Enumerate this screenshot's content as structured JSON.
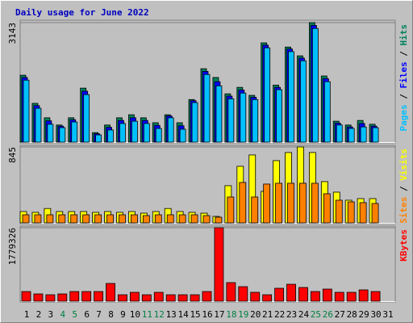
{
  "chart_data": [
    {
      "type": "bar",
      "title": "Daily usage for June 2022",
      "ylim": [
        0,
        3143
      ],
      "yticks": [
        3143
      ],
      "label_separator": " / ",
      "series": [
        {
          "name": "Pages",
          "color": "#00c0ff",
          "values": [
            1630,
            890,
            470,
            380,
            530,
            1250,
            190,
            320,
            490,
            550,
            490,
            360,
            640,
            340,
            1040,
            1780,
            1480,
            1140,
            1290,
            1120,
            2480,
            1380,
            2380,
            2140,
            2990,
            1590,
            450,
            360,
            400,
            380,
            null
          ]
        },
        {
          "name": "Files",
          "color": "#0000ff",
          "values": [
            1700,
            960,
            560,
            420,
            590,
            1340,
            220,
            390,
            570,
            640,
            570,
            440,
            690,
            430,
            1090,
            1860,
            1590,
            1210,
            1370,
            1180,
            2550,
            1440,
            2450,
            2210,
            3070,
            1670,
            500,
            400,
            490,
            420,
            null
          ]
        },
        {
          "name": "Hits",
          "color": "#00805c",
          "values": [
            1760,
            1020,
            640,
            450,
            640,
            1420,
            250,
            450,
            640,
            720,
            640,
            510,
            720,
            510,
            1120,
            1930,
            1700,
            1270,
            1440,
            1230,
            2610,
            1500,
            2500,
            2270,
            3143,
            1740,
            550,
            450,
            570,
            470,
            null
          ]
        }
      ]
    },
    {
      "type": "bar",
      "ylim": [
        0,
        845
      ],
      "yticks": [
        845
      ],
      "label_separator": " / ",
      "series": [
        {
          "name": "Sites",
          "color": "#ff8000",
          "values": [
            90,
            90,
            90,
            90,
            90,
            90,
            90,
            90,
            90,
            90,
            81,
            90,
            90,
            90,
            90,
            81,
            63,
            288,
            450,
            288,
            432,
            441,
            441,
            441,
            441,
            324,
            252,
            234,
            225,
            216,
            null
          ]
        },
        {
          "name": "Visits",
          "color": "#ffff00",
          "values": [
            126,
            117,
            160,
            126,
            126,
            126,
            117,
            126,
            117,
            126,
            108,
            126,
            160,
            126,
            117,
            108,
            72,
            414,
            630,
            756,
            351,
            693,
            783,
            845,
            783,
            459,
            342,
            252,
            270,
            270,
            null
          ]
        }
      ]
    },
    {
      "type": "bar",
      "ylim": [
        0,
        1779326
      ],
      "yticks": [
        1779326
      ],
      "categories": [
        "1",
        "2",
        "3",
        "4",
        "5",
        "6",
        "7",
        "8",
        "9",
        "10",
        "11",
        "12",
        "13",
        "14",
        "15",
        "16",
        "17",
        "18",
        "19",
        "20",
        "21",
        "22",
        "23",
        "24",
        "25",
        "26",
        "27",
        "28",
        "29",
        "30",
        "31"
      ],
      "category_colors": [
        "#000000",
        "#000000",
        "#000000",
        "#008040",
        "#008040",
        "#000000",
        "#000000",
        "#000000",
        "#000000",
        "#000000",
        "#008040",
        "#008040",
        "#000000",
        "#000000",
        "#000000",
        "#000000",
        "#000000",
        "#008040",
        "#008040",
        "#000000",
        "#000000",
        "#000000",
        "#000000",
        "#000000",
        "#008040",
        "#008040",
        "#000000",
        "#000000",
        "#000000",
        "#000000",
        "#000000"
      ],
      "series": [
        {
          "name": "KBytes",
          "color": "#ff0000",
          "values": [
            234000,
            176000,
            156000,
            176000,
            234000,
            234000,
            234000,
            430000,
            156000,
            215000,
            156000,
            215000,
            156000,
            156000,
            156000,
            234000,
            1779326,
            450000,
            352000,
            215000,
            156000,
            313000,
            410000,
            332000,
            234000,
            293000,
            215000,
            215000,
            274000,
            234000,
            null
          ]
        }
      ]
    }
  ]
}
